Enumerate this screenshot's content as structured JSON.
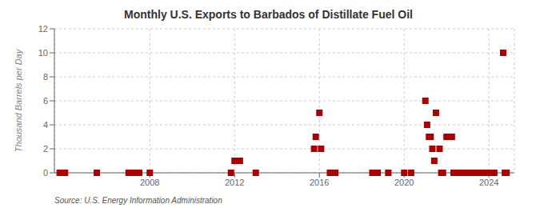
{
  "chart_data": {
    "type": "scatter",
    "title": "Monthly U.S. Exports to Barbados of Distillate Fuel Oil",
    "ylabel": "Thousand Barrels per Day",
    "annotations": [
      "Source: U.S. Energy Information Administration"
    ],
    "x": [
      2003.75,
      2004.0,
      2005.5,
      2007.0,
      2007.25,
      2007.5,
      2008.0,
      2011.83,
      2012.0,
      2012.25,
      2013.0,
      2015.75,
      2015.83,
      2016.0,
      2016.08,
      2016.5,
      2016.75,
      2018.5,
      2018.75,
      2019.25,
      2020.0,
      2020.33,
      2021.0,
      2021.08,
      2021.17,
      2021.25,
      2021.33,
      2021.42,
      2021.5,
      2021.67,
      2021.75,
      2021.83,
      2022.0,
      2022.25,
      2022.33,
      2022.5,
      2022.67,
      2022.75,
      2022.83,
      2022.92,
      2023.0,
      2023.08,
      2023.25,
      2023.42,
      2023.5,
      2023.58,
      2023.67,
      2023.75,
      2023.83,
      2023.92,
      2024.0,
      2024.08,
      2024.17,
      2024.25,
      2024.67,
      2024.75,
      2024.83
    ],
    "values": [
      0,
      0,
      0,
      0,
      0,
      0,
      0,
      0,
      1,
      1,
      0,
      2,
      3,
      5,
      2,
      0,
      0,
      0,
      0,
      0,
      0,
      0,
      6,
      4,
      3,
      3,
      2,
      1,
      5,
      2,
      0,
      0,
      3,
      3,
      0,
      0,
      0,
      0,
      0,
      0,
      0,
      0,
      0,
      0,
      0,
      0,
      0,
      0,
      0,
      0,
      0,
      0,
      0,
      0,
      10,
      0,
      0
    ],
    "color": "#aa0000",
    "marker": "square",
    "xlim": [
      2003.5,
      2025.2
    ],
    "xticks": [
      2008,
      2012,
      2016,
      2020,
      2024
    ],
    "ylim": [
      0,
      12
    ],
    "yticks": [
      0,
      2,
      4,
      6,
      8,
      10,
      12
    ],
    "grid": true
  }
}
